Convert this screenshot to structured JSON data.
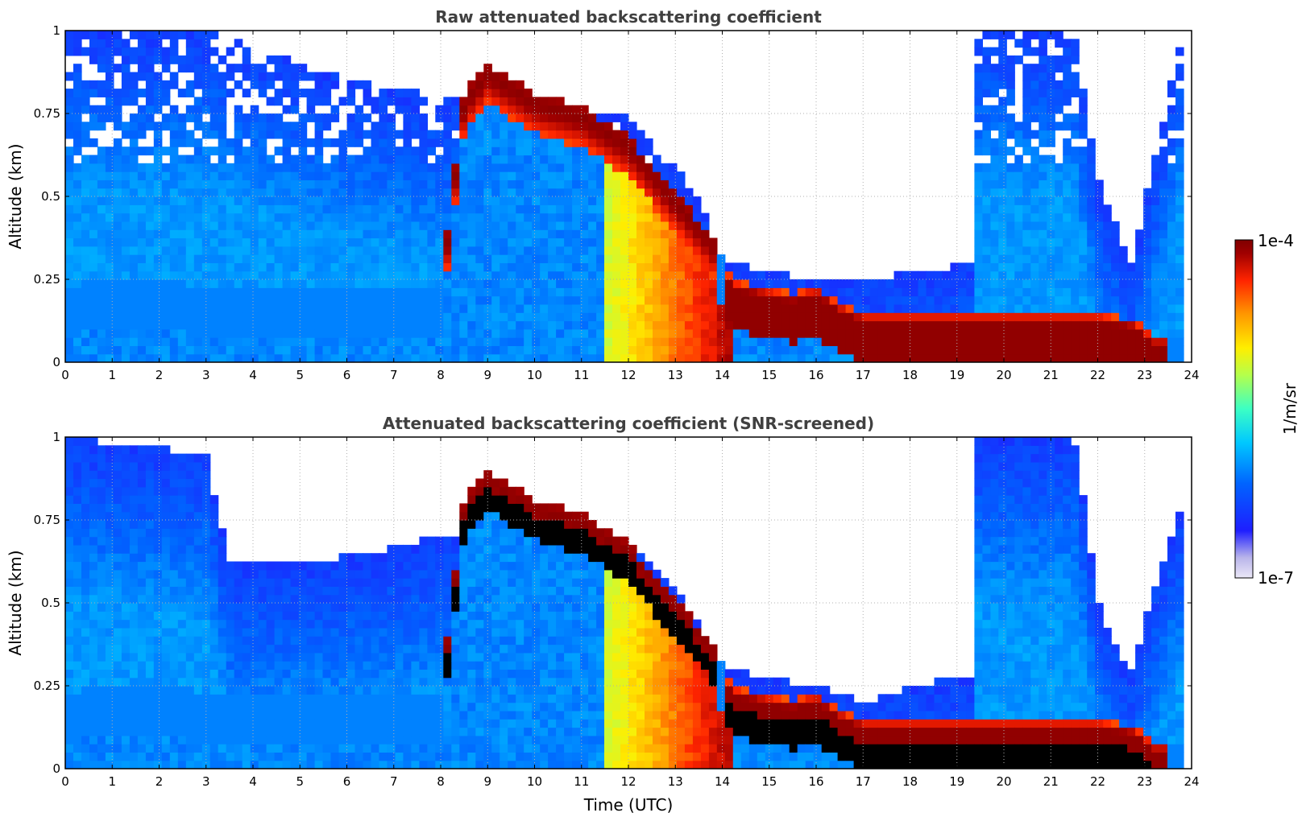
{
  "chart_data": [
    {
      "type": "heatmap",
      "title": "Raw attenuated backscattering coefficient",
      "xlabel": "",
      "ylabel": "Altitude (km)",
      "xlim": [
        0,
        24
      ],
      "ylim": [
        0,
        1
      ],
      "xticks": [
        0,
        1,
        2,
        3,
        4,
        5,
        6,
        7,
        8,
        9,
        10,
        11,
        12,
        13,
        14,
        15,
        16,
        17,
        18,
        19,
        20,
        21,
        22,
        23,
        24
      ],
      "yticks": [
        0,
        0.25,
        0.5,
        0.75,
        1
      ],
      "ytick_labels": [
        "0",
        "0.25",
        "0.5",
        "0.75",
        "1"
      ],
      "grid": true,
      "screened": false,
      "layer_top_km": [
        [
          0.0,
          0.2
        ],
        [
          1.0,
          0.22
        ],
        [
          2.0,
          0.22
        ],
        [
          3.0,
          0.2
        ],
        [
          4.0,
          0.2
        ],
        [
          6.0,
          0.2
        ],
        [
          8.0,
          0.2
        ],
        [
          8.5,
          0.78
        ],
        [
          9.0,
          0.87
        ],
        [
          10.0,
          0.78
        ],
        [
          11.0,
          0.74
        ],
        [
          12.0,
          0.65
        ],
        [
          12.6,
          0.55
        ],
        [
          13.2,
          0.45
        ],
        [
          13.8,
          0.35
        ],
        [
          14.2,
          0.22
        ],
        [
          14.8,
          0.2
        ],
        [
          15.5,
          0.18
        ],
        [
          16.0,
          0.2
        ],
        [
          16.5,
          0.15
        ],
        [
          17.0,
          0.12
        ],
        [
          18.0,
          0.12
        ],
        [
          20.0,
          0.12
        ],
        [
          22.0,
          0.12
        ],
        [
          22.8,
          0.1
        ],
        [
          23.2,
          0.05
        ],
        [
          23.8,
          0.05
        ]
      ],
      "aerosol_top_km": [
        [
          0.0,
          1.0
        ],
        [
          3.0,
          1.0
        ],
        [
          6.0,
          0.85
        ],
        [
          8.0,
          0.8
        ],
        [
          12.0,
          0.75
        ],
        [
          13.5,
          0.5
        ],
        [
          14.0,
          0.3
        ],
        [
          16.0,
          0.25
        ],
        [
          17.0,
          0.25
        ],
        [
          19.4,
          0.3
        ],
        [
          19.45,
          1.0
        ],
        [
          21.5,
          1.0
        ],
        [
          22.0,
          0.55
        ],
        [
          22.7,
          0.3
        ],
        [
          23.2,
          0.6
        ],
        [
          23.8,
          1.0
        ]
      ]
    },
    {
      "type": "heatmap",
      "title": "Attenuated backscattering coefficient (SNR-screened)",
      "xlabel": "Time (UTC)",
      "ylabel": "Altitude (km)",
      "xlim": [
        0,
        24
      ],
      "ylim": [
        0,
        1
      ],
      "xticks": [
        0,
        1,
        2,
        3,
        4,
        5,
        6,
        7,
        8,
        9,
        10,
        11,
        12,
        13,
        14,
        15,
        16,
        17,
        18,
        19,
        20,
        21,
        22,
        23,
        24
      ],
      "yticks": [
        0,
        0.25,
        0.5,
        0.75,
        1
      ],
      "ytick_labels": [
        "0",
        "0.25",
        "0.5",
        "0.75",
        "1"
      ],
      "grid": true,
      "screened": true,
      "layer_top_km": [
        [
          0.0,
          0.2
        ],
        [
          1.0,
          0.22
        ],
        [
          2.0,
          0.22
        ],
        [
          3.0,
          0.2
        ],
        [
          4.0,
          0.2
        ],
        [
          6.0,
          0.2
        ],
        [
          8.0,
          0.2
        ],
        [
          8.5,
          0.78
        ],
        [
          9.0,
          0.87
        ],
        [
          10.0,
          0.78
        ],
        [
          11.0,
          0.74
        ],
        [
          12.0,
          0.65
        ],
        [
          12.6,
          0.55
        ],
        [
          13.2,
          0.45
        ],
        [
          13.8,
          0.35
        ],
        [
          14.2,
          0.22
        ],
        [
          14.8,
          0.2
        ],
        [
          15.5,
          0.18
        ],
        [
          16.0,
          0.2
        ],
        [
          16.5,
          0.15
        ],
        [
          17.0,
          0.12
        ],
        [
          18.0,
          0.12
        ],
        [
          20.0,
          0.12
        ],
        [
          22.0,
          0.12
        ],
        [
          22.8,
          0.1
        ],
        [
          23.2,
          0.05
        ],
        [
          23.8,
          0.05
        ]
      ],
      "aerosol_top_km": [
        [
          0.0,
          1.0
        ],
        [
          3.0,
          0.95
        ],
        [
          3.5,
          0.62
        ],
        [
          5.0,
          0.62
        ],
        [
          6.5,
          0.65
        ],
        [
          8.0,
          0.7
        ],
        [
          12.0,
          0.7
        ],
        [
          13.5,
          0.45
        ],
        [
          14.0,
          0.3
        ],
        [
          16.0,
          0.25
        ],
        [
          17.0,
          0.2
        ],
        [
          18.0,
          0.25
        ],
        [
          19.4,
          0.28
        ],
        [
          19.45,
          1.0
        ],
        [
          21.5,
          1.0
        ],
        [
          22.0,
          0.5
        ],
        [
          22.7,
          0.28
        ],
        [
          23.2,
          0.55
        ],
        [
          23.8,
          0.8
        ]
      ]
    }
  ],
  "colorbar": {
    "max_label": "1e-4",
    "min_label": "1e-7",
    "label": "1/m/sr",
    "colormap": "jet",
    "colors": [
      "#ebe8f7",
      "#b9b4ea",
      "#1e1eff",
      "#0064ff",
      "#00c8ff",
      "#3cffc4",
      "#b4ff4c",
      "#ffee00",
      "#ff9800",
      "#ff2400",
      "#a00000",
      "#7f0000"
    ]
  }
}
